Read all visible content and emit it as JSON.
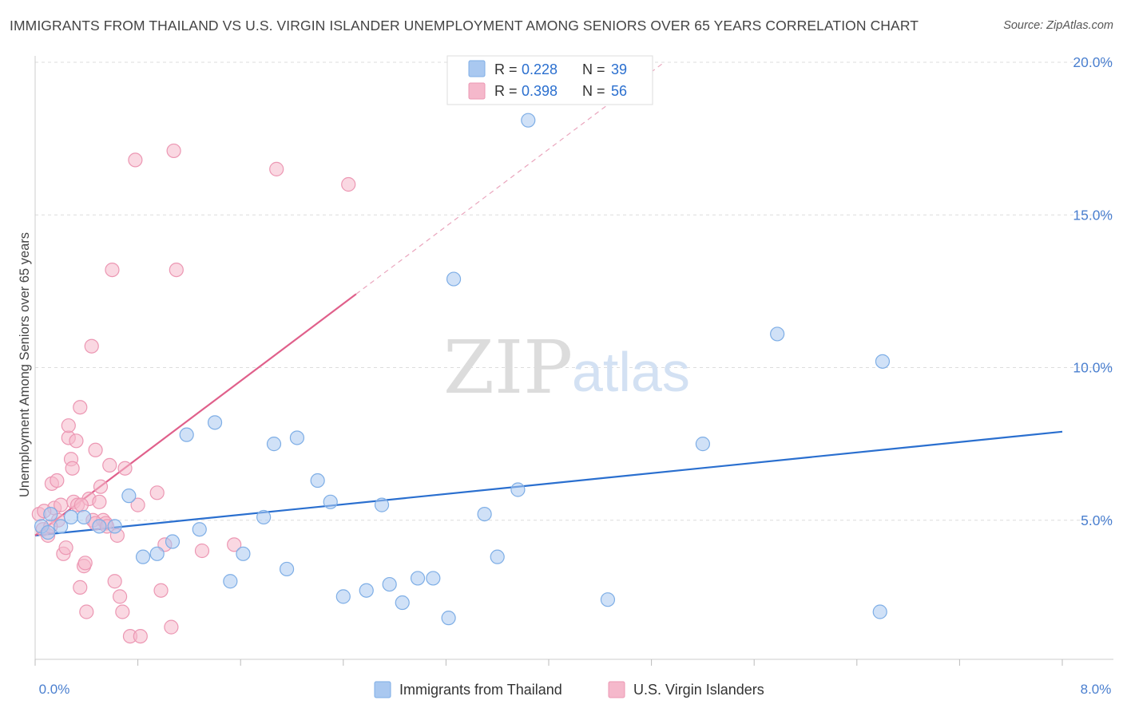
{
  "title": "IMMIGRANTS FROM THAILAND VS U.S. VIRGIN ISLANDER UNEMPLOYMENT AMONG SENIORS OVER 65 YEARS CORRELATION CHART",
  "source": "Source: ZipAtlas.com",
  "watermark": {
    "zip": "ZIP",
    "atlas": "atlas"
  },
  "colors": {
    "blue_fill": "#a9c8f0",
    "blue_stroke": "#7eaee6",
    "blue_line": "#2a6fcf",
    "pink_fill": "#f5b8cb",
    "pink_stroke": "#ec97b3",
    "pink_line": "#e0608b",
    "axis_label": "#4a7fcf",
    "grid": "#dddddd"
  },
  "chart_data": {
    "type": "scatter",
    "title": "IMMIGRANTS FROM THAILAND VS U.S. VIRGIN ISLANDER UNEMPLOYMENT AMONG SENIORS OVER 65 YEARS CORRELATION CHART",
    "xlabel": "",
    "ylabel": "Unemployment Among Seniors over 65 years",
    "xlim": [
      0,
      8
    ],
    "ylim": [
      0,
      20.5
    ],
    "x_tick_labels": [
      "0.0%",
      "8.0%"
    ],
    "y_ticks": [
      5,
      10,
      15,
      20
    ],
    "y_tick_labels": [
      "5.0%",
      "10.0%",
      "15.0%",
      "20.0%"
    ],
    "grid": true,
    "legend_position": "top-center",
    "legend": [
      {
        "swatch": "blue",
        "r_label": "R = ",
        "r_value": "0.228",
        "n_label": "N = ",
        "n_value": "39"
      },
      {
        "swatch": "pink",
        "r_label": "R = ",
        "r_value": "0.398",
        "n_label": "N = ",
        "n_value": "56"
      }
    ],
    "bottom_legend": [
      "Immigrants from Thailand",
      "U.S. Virgin Islanders"
    ],
    "series": [
      {
        "name": "Immigrants from Thailand",
        "color": "blue",
        "trend": {
          "x0": 0,
          "y0": 4.5,
          "x1": 8.0,
          "y1": 7.9,
          "solid_to": 8.0
        },
        "points": [
          [
            0.05,
            4.8
          ],
          [
            0.1,
            4.6
          ],
          [
            0.12,
            5.2
          ],
          [
            0.2,
            4.8
          ],
          [
            0.28,
            5.1
          ],
          [
            0.38,
            5.1
          ],
          [
            0.5,
            4.8
          ],
          [
            0.62,
            4.8
          ],
          [
            0.73,
            5.8
          ],
          [
            0.84,
            3.8
          ],
          [
            0.95,
            3.9
          ],
          [
            1.07,
            4.3
          ],
          [
            1.18,
            7.8
          ],
          [
            1.28,
            4.7
          ],
          [
            1.4,
            8.2
          ],
          [
            1.52,
            3.0
          ],
          [
            1.62,
            3.9
          ],
          [
            1.78,
            5.1
          ],
          [
            1.86,
            7.5
          ],
          [
            1.96,
            3.4
          ],
          [
            2.04,
            7.7
          ],
          [
            2.2,
            6.3
          ],
          [
            2.3,
            5.6
          ],
          [
            2.4,
            2.5
          ],
          [
            2.58,
            2.7
          ],
          [
            2.7,
            5.5
          ],
          [
            2.76,
            2.9
          ],
          [
            2.86,
            2.3
          ],
          [
            2.98,
            3.1
          ],
          [
            3.1,
            3.1
          ],
          [
            3.22,
            1.8
          ],
          [
            3.26,
            12.9
          ],
          [
            3.5,
            5.2
          ],
          [
            3.6,
            3.8
          ],
          [
            3.76,
            6.0
          ],
          [
            3.84,
            18.1
          ],
          [
            4.46,
            2.4
          ],
          [
            5.2,
            7.5
          ],
          [
            5.78,
            11.1
          ]
        ],
        "extra_points": [
          [
            6.6,
            10.2
          ],
          [
            6.58,
            2.0
          ]
        ]
      },
      {
        "name": "U.S. Virgin Islanders",
        "color": "pink",
        "trend": {
          "x0": 0,
          "y0": 4.5,
          "x1": 4.9,
          "y1": 20.0,
          "solid_to": 2.5
        },
        "points": [
          [
            0.03,
            5.2
          ],
          [
            0.06,
            4.7
          ],
          [
            0.1,
            4.5
          ],
          [
            0.13,
            6.2
          ],
          [
            0.15,
            5.4
          ],
          [
            0.17,
            6.3
          ],
          [
            0.18,
            5.0
          ],
          [
            0.2,
            5.5
          ],
          [
            0.22,
            3.9
          ],
          [
            0.24,
            4.1
          ],
          [
            0.26,
            7.7
          ],
          [
            0.26,
            8.1
          ],
          [
            0.28,
            7.0
          ],
          [
            0.29,
            6.7
          ],
          [
            0.3,
            5.6
          ],
          [
            0.32,
            7.6
          ],
          [
            0.33,
            5.5
          ],
          [
            0.35,
            2.8
          ],
          [
            0.35,
            8.7
          ],
          [
            0.38,
            3.5
          ],
          [
            0.39,
            3.6
          ],
          [
            0.4,
            2.0
          ],
          [
            0.42,
            5.7
          ],
          [
            0.44,
            10.7
          ],
          [
            0.45,
            5.0
          ],
          [
            0.47,
            7.3
          ],
          [
            0.5,
            5.6
          ],
          [
            0.51,
            6.1
          ],
          [
            0.53,
            5.0
          ],
          [
            0.55,
            4.9
          ],
          [
            0.58,
            6.8
          ],
          [
            0.6,
            13.2
          ],
          [
            0.62,
            3.0
          ],
          [
            0.64,
            4.5
          ],
          [
            0.66,
            2.5
          ],
          [
            0.68,
            2.0
          ],
          [
            0.7,
            6.7
          ],
          [
            0.74,
            1.2
          ],
          [
            0.78,
            16.8
          ],
          [
            0.8,
            5.5
          ],
          [
            0.82,
            1.2
          ],
          [
            0.95,
            5.9
          ],
          [
            0.98,
            2.7
          ],
          [
            1.01,
            4.2
          ],
          [
            1.06,
            1.5
          ],
          [
            1.08,
            17.1
          ],
          [
            1.1,
            13.2
          ],
          [
            1.3,
            4.0
          ],
          [
            1.55,
            4.2
          ],
          [
            1.88,
            16.5
          ],
          [
            2.44,
            16.0
          ],
          [
            0.07,
            5.3
          ],
          [
            0.12,
            4.8
          ],
          [
            0.36,
            5.5
          ],
          [
            0.47,
            4.9
          ],
          [
            0.56,
            4.8
          ]
        ]
      }
    ]
  }
}
